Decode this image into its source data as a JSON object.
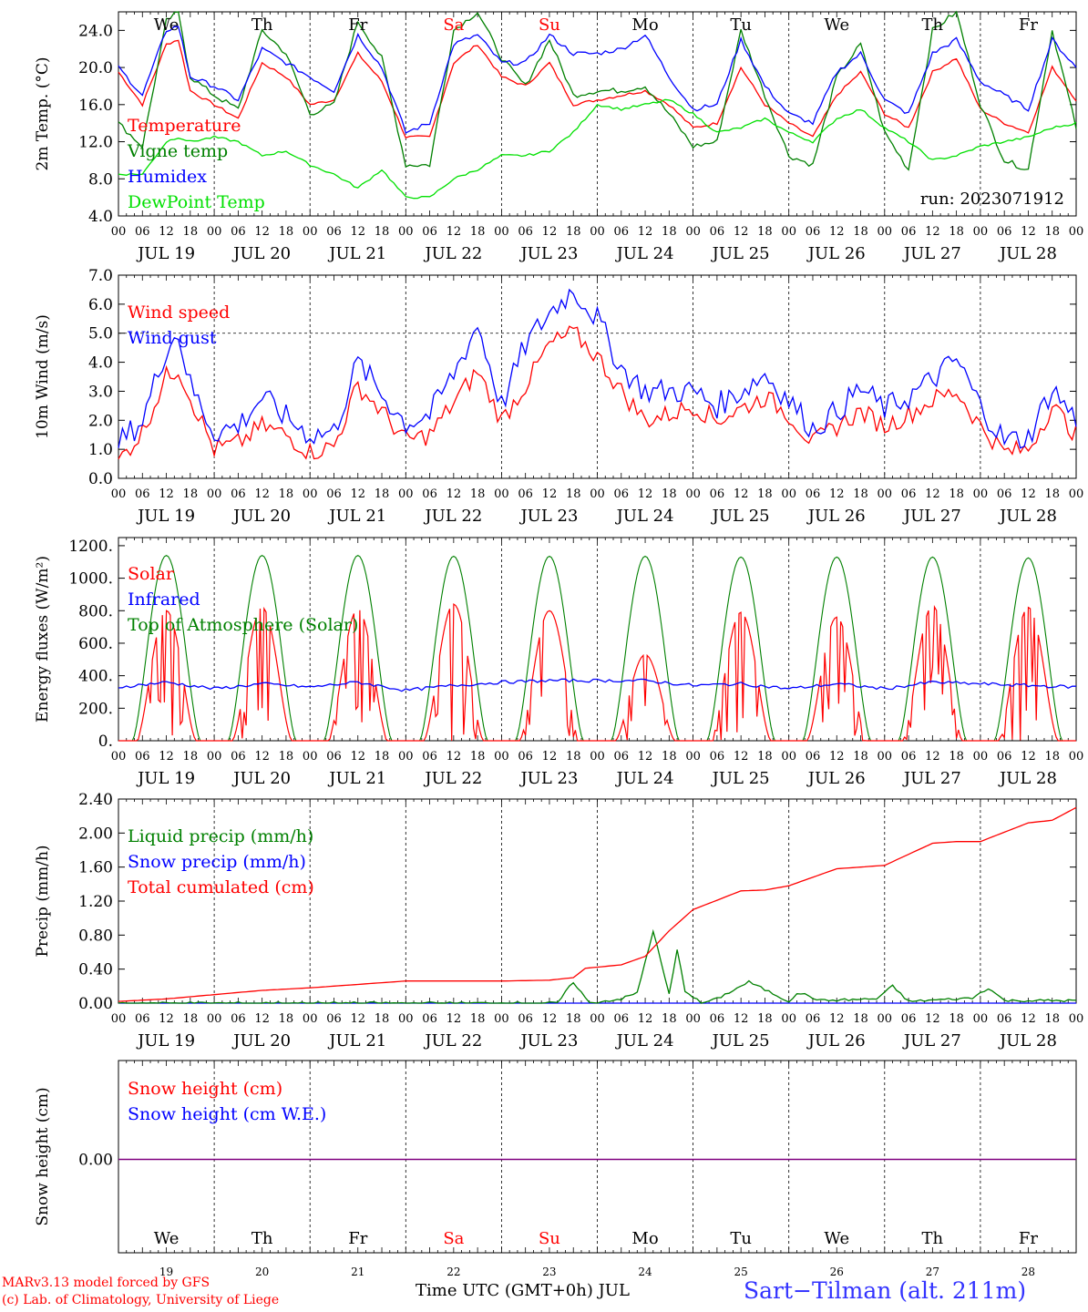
{
  "meta": {
    "run_label": "run: 2023071912"
  },
  "days": {
    "abbr": [
      "We",
      "Th",
      "Fr",
      "Sa",
      "Su",
      "Mo",
      "Tu",
      "We",
      "Th",
      "Fr"
    ],
    "weekend": [
      false,
      false,
      false,
      true,
      true,
      false,
      false,
      false,
      false,
      false
    ],
    "dates": [
      "JUL 19",
      "JUL 20",
      "JUL 21",
      "JUL 22",
      "JUL 23",
      "JUL 24",
      "JUL 25",
      "JUL 26",
      "JUL 27",
      "JUL 28"
    ],
    "numbers": [
      "19",
      "20",
      "21",
      "22",
      "23",
      "24",
      "25",
      "26",
      "27",
      "28"
    ],
    "hour_ticks": [
      "00",
      "06",
      "12",
      "18"
    ],
    "final_tick": "00"
  },
  "colors": {
    "red": "#ff0000",
    "green": "#008000",
    "blue": "#0000ff",
    "lime": "#00e000",
    "purple": "#800080"
  },
  "chart_data": [
    {
      "type": "line",
      "ylabel": "2m Temp. (°C)",
      "ylim": [
        4,
        26
      ],
      "yticks": [
        "4.0",
        "8.0",
        "12.0",
        "16.0",
        "20.0",
        "24.0"
      ],
      "ytick_values": [
        4,
        8,
        12,
        16,
        20,
        24
      ],
      "x_unit": "hours since JUL 19 00 UTC",
      "legend_position": "left",
      "series": [
        {
          "name": "Temperature",
          "color": "#ff0000",
          "x": [
            0,
            6,
            12,
            15,
            18,
            24,
            30,
            36,
            42,
            48,
            54,
            60,
            66,
            72,
            78,
            84,
            90,
            96,
            102,
            108,
            114,
            120,
            126,
            132,
            138,
            144,
            150,
            156,
            162,
            168,
            174,
            180,
            186,
            192,
            198,
            204,
            210,
            216,
            222,
            228,
            234,
            240
          ],
          "values": [
            19.5,
            16,
            22.5,
            23,
            17.5,
            16,
            14.5,
            20.5,
            19,
            16,
            16.5,
            21.5,
            18.5,
            12.5,
            12.5,
            20.5,
            22.5,
            19,
            18,
            20.5,
            16,
            16.5,
            17,
            17.5,
            16,
            13.5,
            14,
            20,
            16,
            14,
            12.5,
            17,
            19.5,
            15,
            13.5,
            19.5,
            21,
            15.5,
            14,
            13,
            20,
            16.5
          ]
        },
        {
          "name": "Vigne temp",
          "color": "#008000",
          "x": [
            0,
            6,
            12,
            15,
            18,
            24,
            30,
            36,
            42,
            48,
            54,
            60,
            66,
            72,
            78,
            84,
            90,
            96,
            102,
            108,
            114,
            120,
            126,
            132,
            138,
            144,
            150,
            156,
            162,
            168,
            174,
            180,
            186,
            192,
            198,
            204,
            210,
            216,
            222,
            228,
            234,
            240
          ],
          "values": [
            14,
            11.5,
            25,
            26,
            19,
            17,
            15.5,
            24,
            21.5,
            15,
            16,
            25,
            21,
            9.5,
            9.5,
            24,
            26,
            21,
            18,
            23,
            17,
            17.5,
            17.5,
            18,
            15,
            11.5,
            12,
            24,
            17,
            10.5,
            9.5,
            19,
            22.5,
            13,
            9,
            24,
            26,
            16,
            10,
            9,
            24,
            13.5
          ]
        },
        {
          "name": "Humidex",
          "color": "#0000ff",
          "x": [
            0,
            6,
            12,
            15,
            18,
            24,
            30,
            36,
            42,
            48,
            54,
            60,
            66,
            72,
            78,
            84,
            90,
            96,
            102,
            108,
            114,
            120,
            126,
            132,
            138,
            144,
            150,
            156,
            162,
            168,
            174,
            180,
            186,
            192,
            198,
            204,
            210,
            216,
            222,
            228,
            234,
            240
          ],
          "values": [
            20,
            17,
            24,
            24.5,
            19,
            18,
            16.5,
            22,
            20.5,
            19,
            17.5,
            23.5,
            20,
            13,
            14,
            22.5,
            23.5,
            20.5,
            20.5,
            23.5,
            21.5,
            21.5,
            22,
            23.5,
            19,
            15.5,
            16,
            23,
            18,
            15,
            14,
            19.5,
            21.5,
            16.5,
            15,
            21.5,
            23,
            18.5,
            17,
            15.5,
            23,
            20
          ]
        },
        {
          "name": "DewPoint Temp",
          "color": "#00e000",
          "x": [
            0,
            6,
            12,
            15,
            18,
            24,
            30,
            36,
            42,
            48,
            54,
            60,
            66,
            72,
            78,
            84,
            90,
            96,
            102,
            108,
            114,
            120,
            126,
            132,
            138,
            144,
            150,
            156,
            162,
            168,
            174,
            180,
            186,
            192,
            198,
            204,
            210,
            216,
            222,
            228,
            234,
            240
          ],
          "values": [
            8.5,
            8.5,
            12,
            12.5,
            12,
            12.5,
            12,
            10.5,
            11,
            9.5,
            8.5,
            7,
            9,
            6,
            6,
            8,
            9,
            10.5,
            10.5,
            11,
            13,
            16,
            15.5,
            16,
            16.5,
            15,
            13,
            13.5,
            14.5,
            13,
            12,
            14.5,
            15.5,
            13.5,
            12,
            10,
            10.5,
            11.5,
            12,
            12.5,
            13.5,
            14
          ]
        }
      ]
    },
    {
      "type": "line",
      "ylabel": "10m Wind (m/s)",
      "ylim": [
        0,
        7
      ],
      "yticks": [
        "0.0",
        "1.0",
        "2.0",
        "3.0",
        "4.0",
        "5.0",
        "6.0",
        "7.0"
      ],
      "ytick_values": [
        0,
        1,
        2,
        3,
        4,
        5,
        6,
        7
      ],
      "x_unit": "hours since JUL 19 00 UTC",
      "legend_position": "left",
      "series": [
        {
          "name": "Wind speed",
          "color": "#ff0000",
          "x": [
            0,
            6,
            12,
            15,
            18,
            24,
            30,
            36,
            42,
            48,
            54,
            60,
            66,
            72,
            78,
            84,
            90,
            96,
            102,
            108,
            114,
            120,
            126,
            132,
            138,
            144,
            150,
            156,
            162,
            168,
            174,
            180,
            186,
            192,
            198,
            204,
            210,
            216,
            222,
            228,
            234,
            240
          ],
          "values": [
            0.6,
            1.6,
            3.5,
            3.8,
            2.8,
            1,
            1.2,
            1.8,
            1.5,
            0.9,
            1.1,
            3.2,
            2.3,
            1.3,
            1.5,
            2.6,
            3.7,
            2,
            3.2,
            4.6,
            5,
            4.2,
            3,
            2,
            2.2,
            2.5,
            2,
            2.4,
            2.8,
            2.2,
            1.2,
            1.8,
            2.3,
            1.8,
            2.2,
            2.7,
            3,
            1.8,
            0.9,
            1,
            2.5,
            1.5
          ]
        },
        {
          "name": "Wind gust",
          "color": "#0000ff",
          "x": [
            0,
            6,
            12,
            15,
            18,
            24,
            30,
            36,
            42,
            48,
            54,
            60,
            66,
            72,
            78,
            84,
            90,
            96,
            102,
            108,
            114,
            120,
            126,
            132,
            138,
            144,
            150,
            156,
            162,
            168,
            174,
            180,
            186,
            192,
            198,
            204,
            210,
            216,
            222,
            228,
            234,
            240
          ],
          "values": [
            1.2,
            2,
            4.5,
            5,
            3.2,
            1.6,
            1.8,
            2.8,
            2.1,
            1.5,
            1.6,
            4,
            2.9,
            1.9,
            2.2,
            3.6,
            5.3,
            2.5,
            4.6,
            5.7,
            6.5,
            5.5,
            3.8,
            3,
            3,
            3,
            2.5,
            3,
            3.6,
            2.7,
            1.7,
            2.3,
            3.1,
            2.4,
            2.8,
            3.4,
            4.1,
            2.5,
            1.3,
            1.4,
            3.1,
            2
          ]
        }
      ]
    },
    {
      "type": "line",
      "ylabel": "Energy fluxes (W/m²)",
      "ylim": [
        0,
        1250
      ],
      "yticks": [
        "0.",
        "200.",
        "400.",
        "600.",
        "800.",
        "1000.",
        "1200."
      ],
      "ytick_values": [
        0,
        200,
        400,
        600,
        800,
        1000,
        1200
      ],
      "x_unit": "hours since JUL 19 00 UTC",
      "legend_position": "left",
      "series": [
        {
          "name": "Solar",
          "color": "#ff0000",
          "daily_peak": [
            800,
            820,
            810,
            840,
            800,
            530,
            790,
            760,
            830,
            820
          ]
        },
        {
          "name": "Infrared",
          "color": "#0000ff",
          "x": [
            0,
            12,
            24,
            36,
            48,
            60,
            72,
            84,
            96,
            108,
            120,
            132,
            144,
            156,
            168,
            180,
            192,
            204,
            216,
            228,
            240
          ],
          "values": [
            330,
            360,
            320,
            350,
            330,
            360,
            310,
            340,
            360,
            370,
            370,
            370,
            340,
            350,
            320,
            350,
            320,
            360,
            350,
            340,
            330
          ]
        },
        {
          "name": "Top of Atmosphere (Solar)",
          "color": "#008000",
          "daily_peak": [
            1140,
            1140,
            1140,
            1135,
            1135,
            1135,
            1130,
            1130,
            1130,
            1125
          ]
        }
      ]
    },
    {
      "type": "line",
      "ylabel": "Precip (mm/h)",
      "ylim": [
        0,
        2.4
      ],
      "yticks": [
        "0.00",
        "0.40",
        "0.80",
        "1.20",
        "1.60",
        "2.00",
        "2.40"
      ],
      "ytick_values": [
        0,
        0.4,
        0.8,
        1.2,
        1.6,
        2.0,
        2.4
      ],
      "x_unit": "hours since JUL 19 00 UTC",
      "legend_position": "left",
      "series": [
        {
          "name": "Liquid precip (mm/h)",
          "color": "#008000",
          "x": [
            0,
            110,
            114,
            118,
            126,
            130,
            134,
            138,
            140,
            142,
            146,
            150,
            158,
            168,
            170,
            172,
            176,
            190,
            194,
            198,
            214,
            218,
            222,
            240
          ],
          "values": [
            0,
            0,
            0.25,
            0,
            0.05,
            0.12,
            0.85,
            0.1,
            0.62,
            0.15,
            0,
            0.05,
            0.25,
            0.02,
            0.12,
            0.1,
            0.03,
            0.05,
            0.2,
            0.02,
            0.06,
            0.18,
            0.03,
            0.03
          ]
        },
        {
          "name": "Snow precip (mm/h)",
          "color": "#0000ff",
          "x": [
            0,
            240
          ],
          "values": [
            0,
            0
          ]
        },
        {
          "name": "Total cumulated (cm)",
          "color": "#ff0000",
          "x": [
            0,
            12,
            24,
            36,
            48,
            60,
            72,
            84,
            96,
            108,
            114,
            117,
            126,
            132,
            138,
            144,
            156,
            162,
            168,
            180,
            186,
            192,
            204,
            210,
            216,
            228,
            234,
            240
          ],
          "values": [
            0.02,
            0.05,
            0.1,
            0.15,
            0.18,
            0.22,
            0.26,
            0.26,
            0.26,
            0.27,
            0.3,
            0.41,
            0.45,
            0.55,
            0.85,
            1.1,
            1.32,
            1.33,
            1.38,
            1.58,
            1.6,
            1.62,
            1.88,
            1.9,
            1.9,
            2.12,
            2.15,
            2.3
          ]
        }
      ]
    },
    {
      "type": "line",
      "ylabel": "Snow height (cm)",
      "yticks": [
        "0.00"
      ],
      "ytick_values": [
        0
      ],
      "x_unit": "hours since JUL 19 00 UTC",
      "legend_position": "left",
      "series": [
        {
          "name": "Snow height (cm)",
          "color": "#ff0000",
          "x": [
            0,
            240
          ],
          "values": [
            0,
            0
          ]
        },
        {
          "name": "Snow height (cm W.E.)",
          "color": "#0000ff",
          "x": [
            0,
            240
          ],
          "values": [
            0,
            0
          ]
        }
      ]
    }
  ],
  "footer": {
    "model_line": "MARv3.13 model forced by GFS",
    "credit_line": "(c) Lab. of Climatology, University of Liege",
    "xlabel": "Time UTC (GMT+0h) JUL",
    "station": "Sart−Tilman (alt. 211m)"
  }
}
